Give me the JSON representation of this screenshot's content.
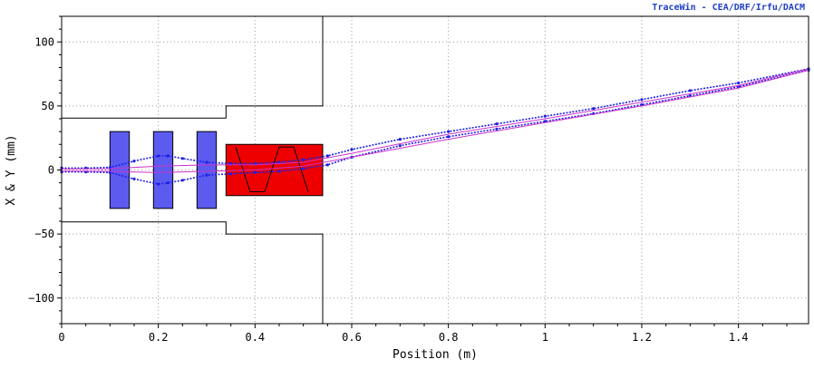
{
  "credit": "TraceWin - CEA/DRF/Irfu/DACM",
  "chart_data": {
    "type": "line",
    "xlabel": "Position (m)",
    "ylabel": "X & Y (mm)",
    "xlim": [
      0,
      1.545
    ],
    "ylim": [
      -120,
      120
    ],
    "xticks": [
      0,
      0.2,
      0.4,
      0.6,
      0.8,
      1,
      1.2,
      1.4
    ],
    "xtick_labels": [
      "0",
      "0.2",
      "0.4",
      "0.6",
      "0.8",
      "1",
      "1.2",
      "1.4"
    ],
    "yticks": [
      -100,
      -50,
      0,
      50,
      100
    ],
    "ytick_labels": [
      "−100",
      "−50",
      "0",
      "50",
      "100"
    ],
    "grid": true,
    "colors": {
      "envelope": "#1f1fe6",
      "envelope_inner": "#cc33cc",
      "aperture": "#000000",
      "quadrupole": "#5b5bf0",
      "cavity": "#ee0000"
    },
    "aperture_upper": {
      "x": [
        0,
        0.34,
        0.34,
        0.54,
        0.54
      ],
      "y": [
        40.5,
        40.5,
        50,
        50,
        120
      ]
    },
    "aperture_lower": {
      "x": [
        0,
        0.34,
        0.34,
        0.54,
        0.54
      ],
      "y": [
        -40.5,
        -40.5,
        -50,
        -50,
        -120
      ]
    },
    "elements": [
      {
        "kind": "quadrupole",
        "x0": 0.1,
        "x1": 0.14,
        "y0": -30,
        "y1": 30
      },
      {
        "kind": "quadrupole",
        "x0": 0.19,
        "x1": 0.23,
        "y0": -30,
        "y1": 30
      },
      {
        "kind": "quadrupole",
        "x0": 0.28,
        "x1": 0.32,
        "y0": -30,
        "y1": 30
      },
      {
        "kind": "cavity",
        "x0": 0.34,
        "x1": 0.54,
        "y0": -20,
        "y1": 20
      }
    ],
    "cavity_field": {
      "x": [
        0.36,
        0.39,
        0.42,
        0.45,
        0.48,
        0.51
      ],
      "y": [
        18,
        -17,
        -17,
        18,
        18,
        -17
      ]
    },
    "series": [
      {
        "role": "envelope-upper-x",
        "x": [
          0,
          0.05,
          0.1,
          0.15,
          0.2,
          0.22,
          0.25,
          0.3,
          0.35,
          0.4,
          0.45,
          0.5,
          0.55,
          0.6,
          0.7,
          0.8,
          0.9,
          1.0,
          1.1,
          1.2,
          1.3,
          1.4,
          1.545
        ],
        "y": [
          1.5,
          1.5,
          2,
          7,
          11,
          11,
          9,
          6,
          5,
          5,
          6,
          8,
          11,
          16,
          24,
          30,
          36,
          42,
          48,
          55,
          62,
          68,
          79
        ]
      },
      {
        "role": "envelope-lower-x",
        "x": [
          0,
          0.05,
          0.1,
          0.15,
          0.2,
          0.22,
          0.25,
          0.3,
          0.35,
          0.4,
          0.45,
          0.5,
          0.55,
          0.6,
          0.7,
          0.8,
          0.9,
          1.0,
          1.1,
          1.2,
          1.3,
          1.4,
          1.545
        ],
        "y": [
          -1.5,
          -1.5,
          -2,
          -7,
          -11,
          -10,
          -8,
          -4,
          -3,
          -2,
          -1,
          1,
          4,
          10,
          19,
          26,
          32,
          38,
          44,
          51,
          58,
          65,
          78
        ]
      },
      {
        "role": "envelope-inner-upper",
        "x": [
          0,
          0.1,
          0.2,
          0.3,
          0.4,
          0.5,
          0.6,
          0.8,
          1.0,
          1.2,
          1.4,
          1.545
        ],
        "y": [
          0.8,
          1,
          3,
          4,
          4,
          6,
          13,
          28,
          40,
          53,
          66,
          79
        ]
      },
      {
        "role": "envelope-inner-lower",
        "x": [
          0,
          0.1,
          0.2,
          0.3,
          0.4,
          0.5,
          0.6,
          0.8,
          1.0,
          1.2,
          1.4,
          1.545
        ],
        "y": [
          -0.8,
          -1,
          -2,
          -1,
          0,
          3,
          10,
          24,
          37,
          50,
          64,
          78
        ]
      }
    ]
  }
}
